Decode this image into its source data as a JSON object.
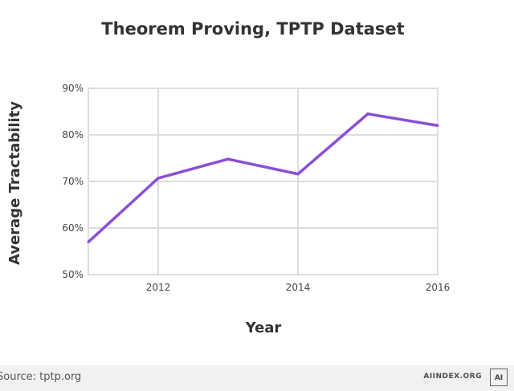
{
  "chart_data": {
    "type": "line",
    "title": "Theorem Proving, TPTP Dataset",
    "xlabel": "Year",
    "ylabel": "Average Tractability",
    "x": [
      2011,
      2012,
      2013,
      2014,
      2015,
      2016
    ],
    "series": [
      {
        "name": "Average Tractability",
        "values": [
          57.0,
          70.7,
          74.8,
          71.6,
          84.5,
          82.0
        ]
      }
    ],
    "xticks": [
      2012,
      2014,
      2016
    ],
    "xtick_labels": [
      "2012",
      "2014",
      "2016"
    ],
    "xlim": [
      2011,
      2016
    ],
    "yticks": [
      50,
      60,
      70,
      80,
      90
    ],
    "ytick_labels": [
      "50%",
      "60%",
      "70%",
      "80%",
      "90%"
    ],
    "ylim": [
      50,
      90
    ],
    "grid": true,
    "line_color": "#8a4fd8",
    "grid_color": "#dddddd"
  },
  "footer": {
    "source": "Source: tptp.org",
    "brand": "AIINDEX.ORG",
    "badge": "AI"
  }
}
